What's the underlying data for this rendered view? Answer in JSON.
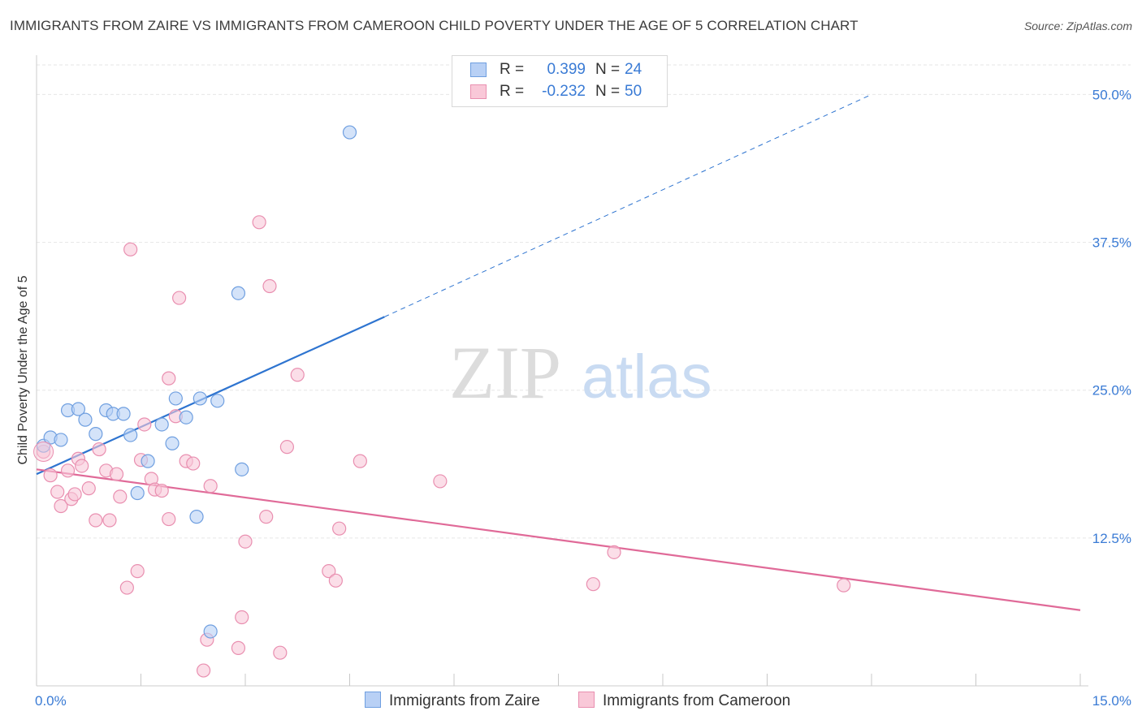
{
  "header": {
    "title": "IMMIGRANTS FROM ZAIRE VS IMMIGRANTS FROM CAMEROON CHILD POVERTY UNDER THE AGE OF 5 CORRELATION CHART",
    "source": "Source: ZipAtlas.com"
  },
  "watermark": {
    "zip": "ZIP",
    "atlas": "atlas"
  },
  "legend": {
    "r_label": "R =",
    "n_label": "N =",
    "series": [
      {
        "name": "Immigrants from Zaire",
        "r": "0.399",
        "n": "24",
        "fill": "#b8d0f5",
        "stroke": "#6f9fe0"
      },
      {
        "name": "Immigrants from Cameroon",
        "r": "-0.232",
        "n": "50",
        "fill": "#f9c8d8",
        "stroke": "#e98fb0"
      }
    ]
  },
  "colors": {
    "zaire_line": "#2e74d0",
    "cameroon_line": "#e06a98",
    "axis_label": "#3a7bd5",
    "grid": "#e6e6e6"
  },
  "chart_data": {
    "type": "scatter",
    "title": "IMMIGRANTS FROM ZAIRE VS IMMIGRANTS FROM CAMEROON CHILD POVERTY UNDER THE AGE OF 5 CORRELATION CHART",
    "xlabel": "",
    "ylabel": "Child Poverty Under the Age of 5",
    "xlim": [
      0,
      15
    ],
    "ylim": [
      0,
      52.5
    ],
    "x_tick_labels": [
      "0.0%",
      "15.0%"
    ],
    "y_ticks": [
      12.5,
      25.0,
      37.5,
      50.0
    ],
    "y_tick_labels": [
      "12.5%",
      "25.0%",
      "37.5%",
      "50.0%"
    ],
    "grid": true,
    "legend_position": "top-center",
    "series": [
      {
        "name": "Immigrants from Zaire",
        "points": [
          [
            0.1,
            20.3
          ],
          [
            0.2,
            21.0
          ],
          [
            0.35,
            20.8
          ],
          [
            0.45,
            23.3
          ],
          [
            0.6,
            23.4
          ],
          [
            0.7,
            22.5
          ],
          [
            0.85,
            21.3
          ],
          [
            1.0,
            23.3
          ],
          [
            1.1,
            23.0
          ],
          [
            1.25,
            23.0
          ],
          [
            1.35,
            21.2
          ],
          [
            1.45,
            16.3
          ],
          [
            1.6,
            19.0
          ],
          [
            1.8,
            22.1
          ],
          [
            1.95,
            20.5
          ],
          [
            2.0,
            24.3
          ],
          [
            2.15,
            22.7
          ],
          [
            2.35,
            24.3
          ],
          [
            2.6,
            24.1
          ],
          [
            2.5,
            4.6
          ],
          [
            2.3,
            14.3
          ],
          [
            2.9,
            33.2
          ],
          [
            2.95,
            18.3
          ],
          [
            4.5,
            46.8
          ]
        ],
        "trend": {
          "x": [
            0.0,
            5.0
          ],
          "y": [
            17.9,
            31.2
          ],
          "extended_to": [
            12.0,
            50.0
          ]
        }
      },
      {
        "name": "Immigrants from Cameroon",
        "points": [
          [
            0.1,
            19.8
          ],
          [
            0.2,
            17.8
          ],
          [
            0.3,
            16.4
          ],
          [
            0.35,
            15.2
          ],
          [
            0.45,
            18.2
          ],
          [
            0.5,
            15.8
          ],
          [
            0.55,
            16.2
          ],
          [
            0.6,
            19.2
          ],
          [
            0.65,
            18.6
          ],
          [
            0.75,
            16.7
          ],
          [
            0.85,
            14.0
          ],
          [
            0.9,
            20.0
          ],
          [
            1.0,
            18.2
          ],
          [
            1.05,
            14.0
          ],
          [
            1.15,
            17.9
          ],
          [
            1.2,
            16.0
          ],
          [
            1.3,
            8.3
          ],
          [
            1.35,
            36.9
          ],
          [
            1.45,
            9.7
          ],
          [
            1.5,
            19.1
          ],
          [
            1.55,
            22.1
          ],
          [
            1.65,
            17.5
          ],
          [
            1.7,
            16.6
          ],
          [
            1.8,
            16.5
          ],
          [
            1.9,
            14.1
          ],
          [
            2.0,
            22.8
          ],
          [
            2.05,
            32.8
          ],
          [
            2.15,
            19.0
          ],
          [
            1.9,
            26.0
          ],
          [
            2.25,
            18.8
          ],
          [
            2.4,
            1.3
          ],
          [
            2.45,
            3.9
          ],
          [
            2.5,
            16.9
          ],
          [
            2.9,
            3.2
          ],
          [
            2.95,
            5.8
          ],
          [
            3.0,
            12.2
          ],
          [
            3.3,
            14.3
          ],
          [
            3.35,
            33.8
          ],
          [
            3.2,
            39.2
          ],
          [
            3.5,
            2.8
          ],
          [
            3.6,
            20.2
          ],
          [
            3.75,
            26.3
          ],
          [
            4.2,
            9.7
          ],
          [
            4.3,
            8.9
          ],
          [
            4.35,
            13.3
          ],
          [
            4.65,
            19.0
          ],
          [
            5.8,
            17.3
          ],
          [
            8.0,
            8.6
          ],
          [
            8.3,
            11.3
          ],
          [
            11.6,
            8.5
          ]
        ],
        "trend": {
          "x": [
            0.0,
            15.0
          ],
          "y": [
            18.3,
            6.4
          ]
        }
      }
    ]
  }
}
